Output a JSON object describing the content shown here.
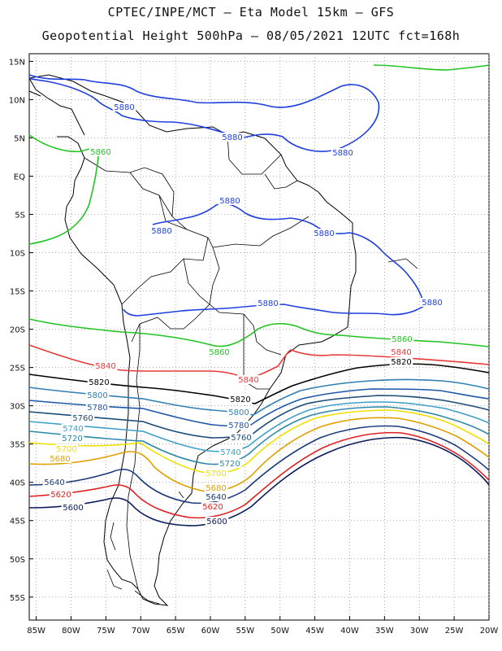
{
  "header": {
    "line1": "CPTEC/INPE/MCT –  Eta Model 15km – GFS",
    "line2": "Geopotential Height 500hPa – 08/05/2021 12UTC fct=168h"
  },
  "axes": {
    "lat_labels": [
      "15N",
      "10N",
      "5N",
      "EQ",
      "5S",
      "10S",
      "15S",
      "20S",
      "25S",
      "30S",
      "35S",
      "40S",
      "45S",
      "50S",
      "55S"
    ],
    "lon_labels": [
      "85W",
      "80W",
      "75W",
      "70W",
      "65W",
      "60W",
      "55W",
      "50W",
      "45W",
      "40W",
      "35W",
      "30W",
      "25W",
      "20W"
    ],
    "lat_range": [
      -58,
      16
    ],
    "lon_range": [
      -86,
      -20
    ],
    "grid": "dotted"
  },
  "contours": [
    {
      "value": "5880",
      "color": "#1f3fe0",
      "labels": [
        "5880",
        "5880",
        "5880",
        "5880",
        "5880",
        "5880",
        "5880",
        "5880"
      ]
    },
    {
      "value": "5860",
      "color": "#22c422",
      "labels": [
        "5860",
        "5860",
        "5860"
      ]
    },
    {
      "value": "5840",
      "color": "#e83a3a",
      "labels": [
        "5840",
        "5840",
        "5840"
      ]
    },
    {
      "value": "5820",
      "color": "#000000",
      "labels": [
        "5820",
        "5820",
        "5820"
      ]
    },
    {
      "value": "5800",
      "color": "#2f7fb5",
      "labels": [
        "5800",
        "5800"
      ]
    },
    {
      "value": "5780",
      "color": "#1e56a8",
      "labels": [
        "5780",
        "5780"
      ]
    },
    {
      "value": "5760",
      "color": "#1a4a78",
      "labels": [
        "5760",
        "5760"
      ]
    },
    {
      "value": "5740",
      "color": "#3ea0c8",
      "labels": [
        "5740",
        "5740"
      ]
    },
    {
      "value": "5720",
      "color": "#2e88a8",
      "labels": [
        "5720",
        "5720"
      ]
    },
    {
      "value": "5700",
      "color": "#f0e000",
      "labels": [
        "5700",
        "5700"
      ]
    },
    {
      "value": "5680",
      "color": "#e0a000",
      "labels": [
        "5680",
        "5680"
      ]
    },
    {
      "value": "5640",
      "color": "#1a3a7a",
      "labels": [
        "5640",
        "5640"
      ]
    },
    {
      "value": "5620",
      "color": "#e02020",
      "labels": [
        "5620",
        "5620"
      ]
    },
    {
      "value": "5600",
      "color": "#0a1a5a",
      "labels": [
        "5600",
        "5600"
      ]
    }
  ]
}
